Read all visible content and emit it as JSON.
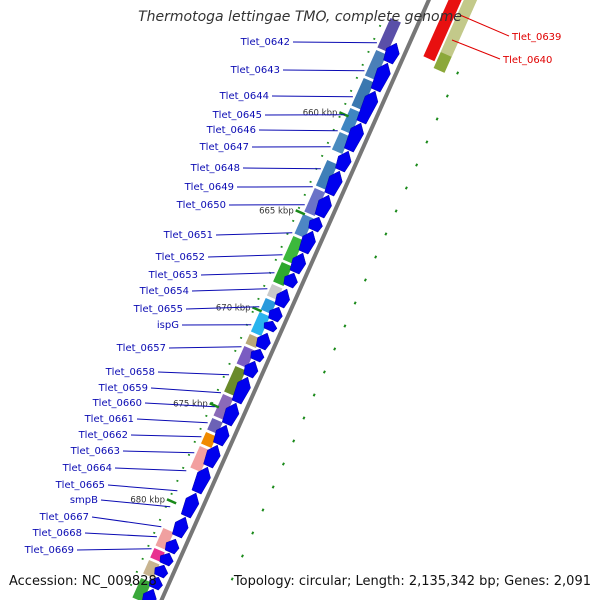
{
  "title": "Thermotoga lettingae TMO, complete genome",
  "accession": "Accession: NC_009828",
  "topology": "Topology: circular; Length: 2,135,342 bp; Genes: 2,091",
  "colors": {
    "gene_label": "#0b0bb3",
    "highlight_label": "#e00000",
    "arrow": "#0000ee",
    "backbone": "#777777",
    "tick": "#1a8a1a"
  },
  "kbp_ticks": [
    "660 kbp",
    "665 kbp",
    "670 kbp",
    "675 kbp",
    "680 kbp"
  ],
  "genes": [
    {
      "label": "Tlet_0642"
    },
    {
      "label": "Tlet_0643"
    },
    {
      "label": "Tlet_0644"
    },
    {
      "label": "Tlet_0645"
    },
    {
      "label": "Tlet_0646"
    },
    {
      "label": "Tlet_0647"
    },
    {
      "label": "Tlet_0648"
    },
    {
      "label": "Tlet_0649"
    },
    {
      "label": "Tlet_0650"
    },
    {
      "label": "Tlet_0651"
    },
    {
      "label": "Tlet_0652"
    },
    {
      "label": "Tlet_0653"
    },
    {
      "label": "Tlet_0654"
    },
    {
      "label": "Tlet_0655"
    },
    {
      "label": "ispG"
    },
    {
      "label": "Tlet_0657"
    },
    {
      "label": "Tlet_0658"
    },
    {
      "label": "Tlet_0659"
    },
    {
      "label": "Tlet_0660"
    },
    {
      "label": "Tlet_0661"
    },
    {
      "label": "Tlet_0662"
    },
    {
      "label": "Tlet_0663"
    },
    {
      "label": "Tlet_0664"
    },
    {
      "label": "Tlet_0665"
    },
    {
      "label": "smpB"
    },
    {
      "label": "Tlet_0667"
    },
    {
      "label": "Tlet_0668"
    },
    {
      "label": "Tlet_0669"
    }
  ],
  "highlighted_genes": [
    {
      "label": "Tlet_0639"
    },
    {
      "label": "Tlet_0640"
    }
  ]
}
